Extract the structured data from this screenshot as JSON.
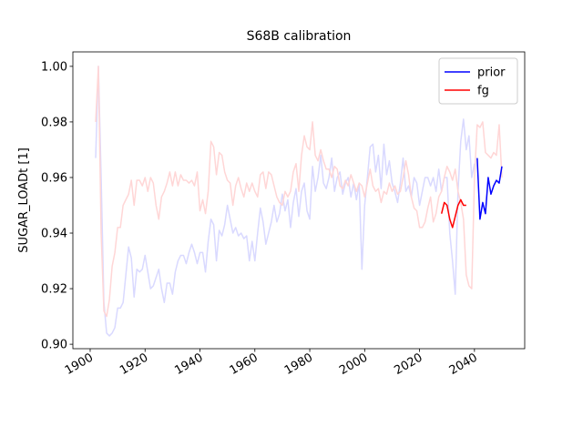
{
  "chart_data": {
    "type": "line",
    "title": "S68B calibration",
    "y_label": "SUGAR_LOADt [1]",
    "xlim": [
      1893.7,
      2058.3
    ],
    "xticks": [
      1900,
      1920,
      1940,
      1960,
      1980,
      2000,
      2020,
      2040
    ],
    "ylim": [
      0.8984,
      1.0052
    ],
    "yticks": [
      {
        "value": 0.9,
        "label": "0.90"
      },
      0.92,
      0.94,
      0.96,
      0.98,
      {
        "value": 1.0,
        "label": "1.00"
      }
    ],
    "legend": "upper right",
    "series": [
      {
        "color": "#d9d9ff",
        "x": [
          1902,
          1903,
          1904,
          1905,
          1906,
          1907,
          1908,
          1909,
          1910,
          1911,
          1912,
          1913,
          1914,
          1915,
          1916,
          1917,
          1918,
          1919,
          1920,
          1921,
          1922,
          1923,
          1924,
          1925,
          1926,
          1927,
          1928,
          1929,
          1930,
          1931,
          1932,
          1933,
          1934,
          1935,
          1936,
          1937,
          1938,
          1939,
          1940,
          1941,
          1942,
          1943,
          1944,
          1945,
          1946,
          1947,
          1948,
          1949,
          1950,
          1951,
          1952,
          1953,
          1954,
          1955,
          1956,
          1957,
          1958,
          1959,
          1960,
          1961,
          1962,
          1963,
          1964,
          1965,
          1966,
          1967,
          1968,
          1969,
          1970,
          1971,
          1972,
          1973,
          1974,
          1975,
          1976,
          1977,
          1978,
          1979,
          1980,
          1981,
          1982,
          1983,
          1984,
          1985,
          1986,
          1987,
          1988,
          1989,
          1990,
          1991,
          1992,
          1993,
          1994,
          1995,
          1996,
          1997,
          1998,
          1999,
          2000,
          2001,
          2002,
          2003,
          2004,
          2005,
          2006,
          2007,
          2008,
          2009,
          2010,
          2011,
          2012,
          2013,
          2014,
          2015,
          2016,
          2017,
          2018,
          2019,
          2020,
          2021,
          2022,
          2023,
          2024,
          2025,
          2026,
          2027,
          2028,
          2029,
          2030,
          2031,
          2032,
          2033,
          2034,
          2035,
          2036,
          2037,
          2038,
          2039,
          2040
        ],
        "values": [
          0.967,
          1.0,
          0.96,
          0.915,
          0.904,
          0.903,
          0.904,
          0.906,
          0.913,
          0.913,
          0.915,
          0.925,
          0.935,
          0.931,
          0.917,
          0.927,
          0.926,
          0.927,
          0.932,
          0.926,
          0.92,
          0.921,
          0.924,
          0.927,
          0.92,
          0.915,
          0.922,
          0.922,
          0.918,
          0.926,
          0.93,
          0.932,
          0.932,
          0.929,
          0.933,
          0.936,
          0.933,
          0.929,
          0.933,
          0.933,
          0.926,
          0.937,
          0.945,
          0.943,
          0.93,
          0.941,
          0.939,
          0.943,
          0.95,
          0.945,
          0.94,
          0.942,
          0.939,
          0.94,
          0.938,
          0.939,
          0.93,
          0.937,
          0.93,
          0.94,
          0.949,
          0.944,
          0.936,
          0.94,
          0.944,
          0.95,
          0.944,
          0.947,
          0.954,
          0.948,
          0.952,
          0.942,
          0.951,
          0.956,
          0.946,
          0.955,
          0.958,
          0.948,
          0.945,
          0.964,
          0.955,
          0.96,
          0.968,
          0.958,
          0.956,
          0.96,
          0.967,
          0.955,
          0.96,
          0.962,
          0.954,
          0.958,
          0.96,
          0.953,
          0.958,
          0.952,
          0.958,
          0.927,
          0.95,
          0.96,
          0.971,
          0.972,
          0.962,
          0.968,
          0.956,
          0.972,
          0.961,
          0.966,
          0.958,
          0.955,
          0.951,
          0.958,
          0.967,
          0.955,
          0.957,
          0.953,
          0.96,
          0.958,
          0.95,
          0.955,
          0.96,
          0.96,
          0.957,
          0.96,
          0.955,
          0.963,
          0.955,
          0.96,
          0.96,
          0.94,
          0.93,
          0.918,
          0.955,
          0.973,
          0.981,
          0.97,
          0.975,
          0.96,
          0.965
        ]
      },
      {
        "color": "#ffd6d6",
        "x": [
          1902,
          1903,
          1904,
          1905,
          1906,
          1907,
          1908,
          1909,
          1910,
          1911,
          1912,
          1913,
          1914,
          1915,
          1916,
          1917,
          1918,
          1919,
          1920,
          1921,
          1922,
          1923,
          1924,
          1925,
          1926,
          1927,
          1928,
          1929,
          1930,
          1931,
          1932,
          1933,
          1934,
          1935,
          1936,
          1937,
          1938,
          1939,
          1940,
          1941,
          1942,
          1943,
          1944,
          1945,
          1946,
          1947,
          1948,
          1949,
          1950,
          1951,
          1952,
          1953,
          1954,
          1955,
          1956,
          1957,
          1958,
          1959,
          1960,
          1961,
          1962,
          1963,
          1964,
          1965,
          1966,
          1967,
          1968,
          1969,
          1970,
          1971,
          1972,
          1973,
          1974,
          1975,
          1976,
          1977,
          1978,
          1979,
          1980,
          1981,
          1982,
          1983,
          1984,
          1985,
          1986,
          1987,
          1988,
          1989,
          1990,
          1991,
          1992,
          1993,
          1994,
          1995,
          1996,
          1997,
          1998,
          1999,
          2000,
          2001,
          2002,
          2003,
          2004,
          2005,
          2006,
          2007,
          2008,
          2009,
          2010,
          2011,
          2012,
          2013,
          2014,
          2015,
          2016,
          2017,
          2018,
          2019,
          2020,
          2021,
          2022,
          2023,
          2024,
          2025,
          2026,
          2027,
          2028,
          2029,
          2030,
          2031,
          2032,
          2033,
          2034,
          2035,
          2036,
          2037,
          2038,
          2039,
          2040,
          2041,
          2042,
          2043,
          2044,
          2045,
          2046,
          2047,
          2048,
          2049,
          2050
        ],
        "values": [
          0.98,
          1.0,
          0.94,
          0.912,
          0.91,
          0.916,
          0.928,
          0.933,
          0.942,
          0.942,
          0.95,
          0.952,
          0.954,
          0.959,
          0.95,
          0.959,
          0.959,
          0.957,
          0.96,
          0.955,
          0.96,
          0.958,
          0.95,
          0.945,
          0.953,
          0.955,
          0.958,
          0.962,
          0.957,
          0.962,
          0.957,
          0.961,
          0.959,
          0.959,
          0.958,
          0.959,
          0.957,
          0.962,
          0.948,
          0.952,
          0.947,
          0.955,
          0.973,
          0.971,
          0.961,
          0.969,
          0.968,
          0.962,
          0.959,
          0.958,
          0.95,
          0.957,
          0.96,
          0.956,
          0.953,
          0.958,
          0.955,
          0.958,
          0.955,
          0.953,
          0.961,
          0.962,
          0.956,
          0.962,
          0.961,
          0.957,
          0.953,
          0.951,
          0.95,
          0.955,
          0.953,
          0.955,
          0.962,
          0.965,
          0.955,
          0.968,
          0.975,
          0.971,
          0.97,
          0.98,
          0.968,
          0.966,
          0.97,
          0.966,
          0.963,
          0.963,
          0.96,
          0.964,
          0.963,
          0.957,
          0.956,
          0.959,
          0.957,
          0.961,
          0.958,
          0.955,
          0.958,
          0.957,
          0.953,
          0.958,
          0.963,
          0.957,
          0.955,
          0.956,
          0.951,
          0.955,
          0.954,
          0.958,
          0.955,
          0.957,
          0.954,
          0.955,
          0.96,
          0.966,
          0.961,
          0.953,
          0.949,
          0.948,
          0.942,
          0.942,
          0.944,
          0.949,
          0.953,
          0.944,
          0.947,
          0.953,
          0.955,
          0.96,
          0.964,
          0.962,
          0.959,
          0.963,
          0.955,
          0.951,
          0.945,
          0.925,
          0.921,
          0.92,
          0.96,
          0.979,
          0.978,
          0.98,
          0.969,
          0.968,
          0.967,
          0.969,
          0.968,
          0.979,
          0.96
        ]
      },
      {
        "name": "prior",
        "color": "#0000ff",
        "x": [
          2041,
          2042,
          2043,
          2044,
          2045,
          2046,
          2047,
          2048,
          2049,
          2050
        ],
        "values": [
          0.967,
          0.945,
          0.951,
          0.947,
          0.96,
          0.954,
          0.957,
          0.959,
          0.958,
          0.964
        ]
      },
      {
        "name": "fg",
        "color": "#ff0000",
        "x": [
          2028,
          2029,
          2030,
          2031,
          2032,
          2033,
          2034,
          2035,
          2036,
          2037
        ],
        "values": [
          0.947,
          0.951,
          0.95,
          0.945,
          0.942,
          0.946,
          0.95,
          0.952,
          0.95,
          0.95
        ]
      }
    ]
  }
}
